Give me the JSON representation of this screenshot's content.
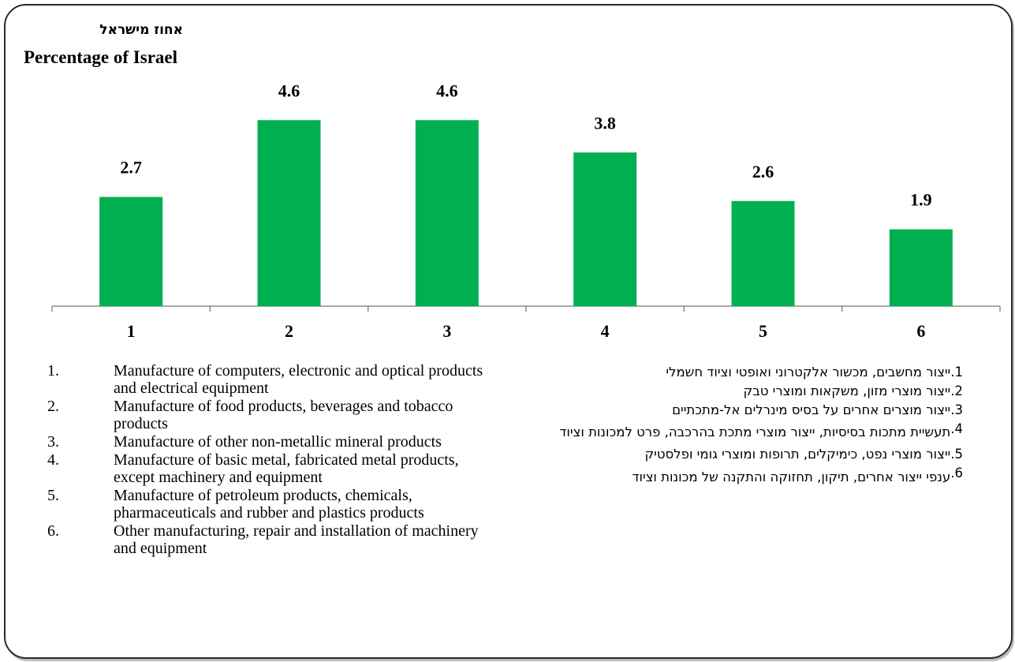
{
  "titles": {
    "hebrew": "אחוז מישראל",
    "english": "Percentage of Israel"
  },
  "colors": {
    "bar": "#00b050",
    "axis": "#8c8c8c",
    "text": "#000000"
  },
  "chart_data": {
    "type": "bar",
    "categories": [
      "1",
      "2",
      "3",
      "4",
      "5",
      "6"
    ],
    "values": [
      2.7,
      4.6,
      4.6,
      3.8,
      2.6,
      1.9
    ],
    "data_labels": [
      "2.7",
      "4.6",
      "4.6",
      "3.8",
      "2.6",
      "1.9"
    ],
    "title": "Percentage of Israel",
    "xlabel": "",
    "ylabel": "",
    "ylim": [
      0,
      5.6
    ],
    "grid": false,
    "legend": "none"
  },
  "legend_english": [
    {
      "num": "1.",
      "text": "Manufacture of computers,  electronic and optical products and electrical equipment"
    },
    {
      "num": "2.",
      "text": "Manufacture of food products, beverages and tobacco products"
    },
    {
      "num": "3.",
      "text": "Manufacture of other non-metallic mineral products"
    },
    {
      "num": "4.",
      "text": "Manufacture of basic metal, fabricated metal products, except machinery and equipment"
    },
    {
      "num": "5.",
      "text": "Manufacture of petroleum products, chemicals, pharmaceuticals and rubber and plastics products"
    },
    {
      "num": "6.",
      "text": "Other manufacturing, repair and installation of machinery and equipment"
    }
  ],
  "legend_hebrew": [
    {
      "num": "1.",
      "text": "ייצור מחשבים, מכשור אלקטרוני ואופטי וציוד חשמלי"
    },
    {
      "num": "2.",
      "text": "ייצור מוצרי מזון, משקאות ומוצרי טבק"
    },
    {
      "num": "3.",
      "text": "ייצור מוצרים אחרים על בסיס מינרלים אל-מתכתיים"
    },
    {
      "num": "4.",
      "text": "תעשיית מתכות בסיסיות, ייצור מוצרי מתכת בהרכבה, פרט למכונות וציוד"
    },
    {
      "num": "5.",
      "text": "ייצור מוצרי נפט, כימיקלים, תרופות ומוצרי גומי ופלסטיק"
    },
    {
      "num": "6.",
      "text": "ענפי ייצור אחרים, תיקון, תחזוקה והתקנה של מכונות וציוד"
    }
  ]
}
